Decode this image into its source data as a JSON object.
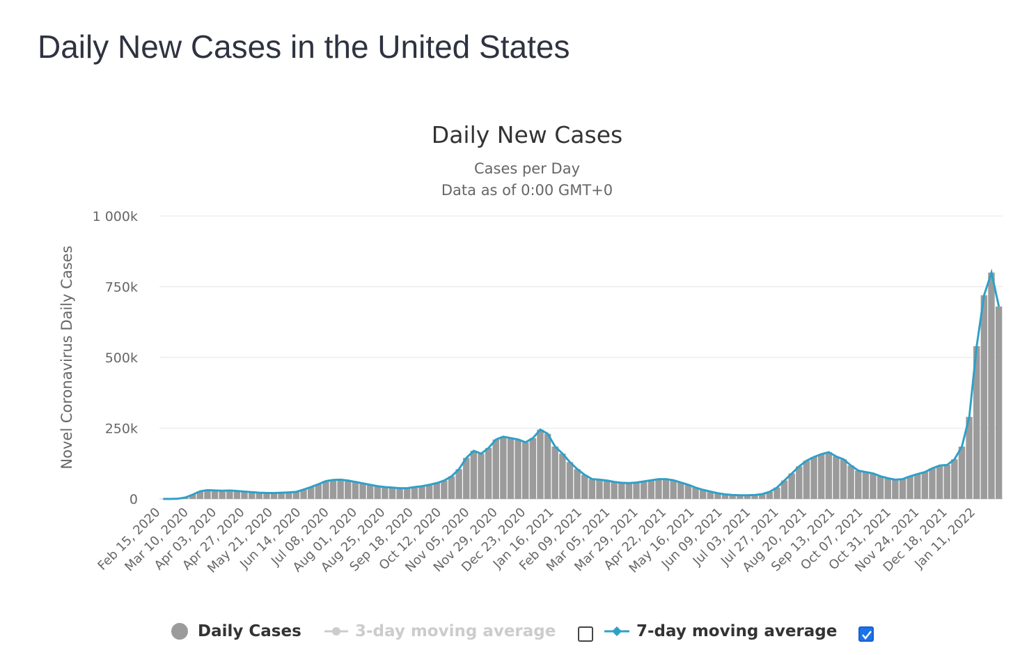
{
  "page": {
    "title": "Daily New Cases in the United States"
  },
  "colors": {
    "bars": "#9b9b9b",
    "ma7": "#2ea0c8",
    "ma3_muted": "#cccccc",
    "grid": "#e6e6e6",
    "checkbox_checked": "#1a73e8"
  },
  "legend": {
    "daily_cases": "Daily Cases",
    "ma3": "3-day moving average",
    "ma7": "7-day moving average",
    "ma3_checked": false,
    "ma7_checked": true
  },
  "chart_data": {
    "type": "bar",
    "title": "Daily New Cases",
    "subtitle_line1": "Cases per Day",
    "subtitle_line2": "Data as of 0:00 GMT+0",
    "ylabel": "Novel Coronavirus Daily Cases",
    "xlabel": "",
    "ylim": [
      0,
      1000000
    ],
    "yticks": [
      {
        "value": 0,
        "label": "0"
      },
      {
        "value": 250000,
        "label": "250k"
      },
      {
        "value": 500000,
        "label": "500k"
      },
      {
        "value": 750000,
        "label": "750k"
      },
      {
        "value": 1000000,
        "label": "1 000k"
      }
    ],
    "x_start": "2020-02-15",
    "x_end": "2022-01-21",
    "x_tick_labels": [
      "Feb 15, 2020",
      "Mar 10, 2020",
      "Apr 03, 2020",
      "Apr 27, 2020",
      "May 21, 2020",
      "Jun 14, 2020",
      "Jul 08, 2020",
      "Aug 01, 2020",
      "Aug 25, 2020",
      "Sep 18, 2020",
      "Oct 12, 2020",
      "Nov 05, 2020",
      "Nov 29, 2020",
      "Dec 23, 2020",
      "Jan 16, 2021",
      "Feb 09, 2021",
      "Mar 05, 2021",
      "Mar 29, 2021",
      "Apr 22, 2021",
      "May 16, 2021",
      "Jun 09, 2021",
      "Jul 03, 2021",
      "Jul 27, 2021",
      "Aug 20, 2021",
      "Sep 13, 2021",
      "Oct 07, 2021",
      "Oct 31, 2021",
      "Nov 24, 2021",
      "Dec 18, 2021",
      "Jan 11, 2022"
    ],
    "series": [
      {
        "name": "Daily Cases",
        "resolution": "weekly average starting Feb 15, 2020",
        "values": [
          0,
          100,
          800,
          5000,
          15000,
          27000,
          31000,
          30000,
          29000,
          30000,
          28000,
          26000,
          24000,
          22000,
          21000,
          21000,
          22000,
          23000,
          25000,
          33000,
          42000,
          52000,
          63000,
          67000,
          68000,
          65000,
          60000,
          55000,
          50000,
          45000,
          42000,
          40000,
          38000,
          38000,
          42000,
          45000,
          50000,
          56000,
          65000,
          80000,
          105000,
          145000,
          170000,
          160000,
          180000,
          210000,
          220000,
          215000,
          210000,
          200000,
          215000,
          245000,
          230000,
          185000,
          160000,
          130000,
          105000,
          85000,
          70000,
          68000,
          65000,
          60000,
          57000,
          56000,
          58000,
          62000,
          66000,
          70000,
          70000,
          66000,
          58000,
          50000,
          40000,
          32000,
          26000,
          20000,
          16000,
          14000,
          13000,
          13000,
          14000,
          17000,
          25000,
          40000,
          65000,
          90000,
          115000,
          135000,
          148000,
          158000,
          165000,
          150000,
          140000,
          118000,
          100000,
          95000,
          90000,
          80000,
          73000,
          68000,
          70000,
          80000,
          88000,
          95000,
          108000,
          118000,
          120000,
          140000,
          185000,
          290000,
          540000,
          720000,
          800000,
          680000
        ]
      },
      {
        "name": "7-day moving average",
        "values": [
          0,
          100,
          800,
          5000,
          15000,
          27000,
          31000,
          30000,
          29000,
          30000,
          28000,
          26000,
          24000,
          22000,
          21000,
          21000,
          22000,
          23000,
          25000,
          33000,
          42000,
          52000,
          63000,
          67000,
          68000,
          65000,
          60000,
          55000,
          50000,
          45000,
          42000,
          40000,
          38000,
          38000,
          42000,
          45000,
          50000,
          56000,
          65000,
          80000,
          105000,
          145000,
          170000,
          160000,
          180000,
          210000,
          220000,
          215000,
          210000,
          200000,
          215000,
          245000,
          230000,
          185000,
          160000,
          130000,
          105000,
          85000,
          70000,
          68000,
          65000,
          60000,
          57000,
          56000,
          58000,
          62000,
          66000,
          70000,
          70000,
          66000,
          58000,
          50000,
          40000,
          32000,
          26000,
          20000,
          16000,
          14000,
          13000,
          13000,
          14000,
          17000,
          25000,
          40000,
          65000,
          90000,
          115000,
          135000,
          148000,
          158000,
          165000,
          150000,
          140000,
          118000,
          100000,
          95000,
          90000,
          80000,
          73000,
          68000,
          70000,
          80000,
          88000,
          95000,
          108000,
          118000,
          120000,
          140000,
          185000,
          290000,
          540000,
          720000,
          800000,
          680000
        ]
      },
      {
        "name": "3-day moving average",
        "visible": false
      }
    ]
  }
}
